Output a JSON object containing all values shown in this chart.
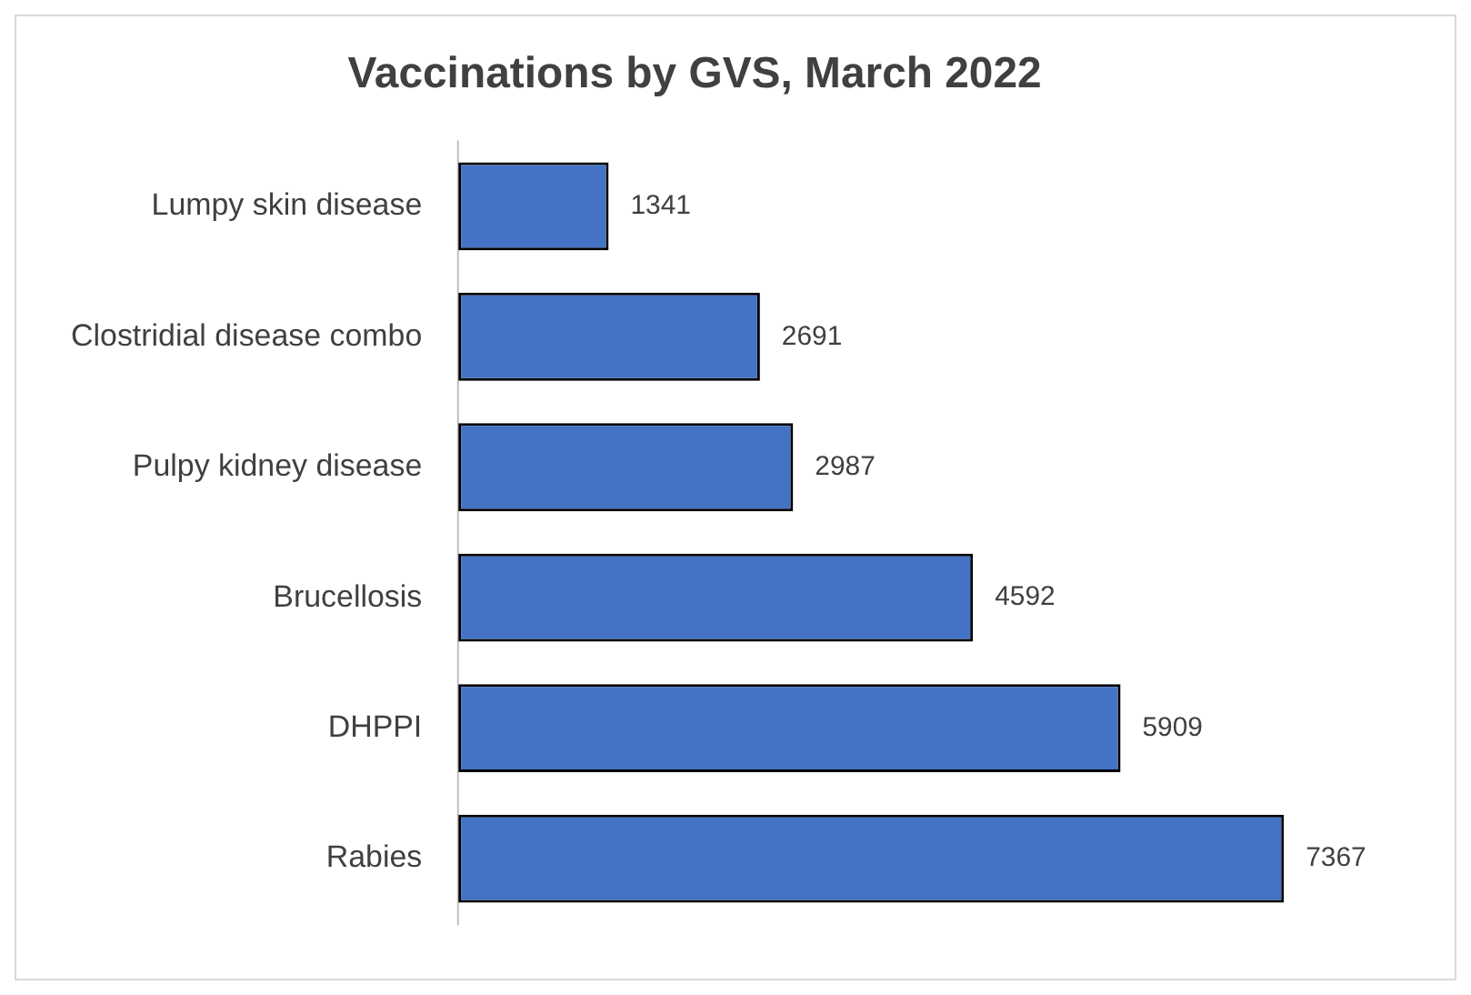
{
  "chart_data": {
    "type": "bar",
    "title": "Vaccinations by GVS, March 2022",
    "orientation": "horizontal",
    "categories": [
      "Lumpy skin disease",
      "Clostridial disease combo",
      "Pulpy kidney disease",
      "Brucellosis",
      "DHPPI",
      "Rabies"
    ],
    "values": [
      1341,
      2691,
      2987,
      4592,
      5909,
      7367
    ],
    "color": "#4472c4",
    "data_labels": true,
    "grid": false,
    "legend": false
  }
}
